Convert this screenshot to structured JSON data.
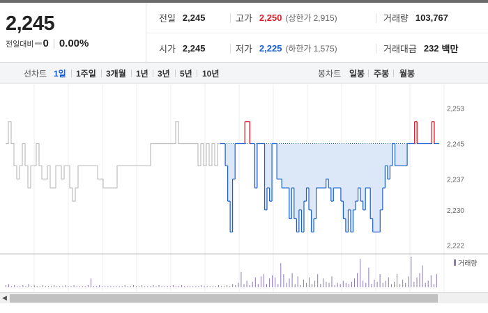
{
  "quote": {
    "price": "2,245",
    "change_label": "전일대비",
    "change": "0",
    "change_rate": "0.00%",
    "prev_close_label": "전일",
    "prev_close": "2,245",
    "open_label": "시가",
    "open": "2,245",
    "high_label": "고가",
    "high": "2,250",
    "upper_limit_label": "(상한가",
    "upper_limit": "2,915)",
    "low_label": "저가",
    "low": "2,225",
    "lower_limit_label": "(하한가",
    "lower_limit": "1,575)",
    "volume_label": "거래량",
    "volume": "103,767",
    "amount_label": "거래대금",
    "amount": "232",
    "amount_unit": "백만"
  },
  "tabs": {
    "line_title": "선차트",
    "line_tabs": [
      "1일",
      "1주일",
      "3개월",
      "1년",
      "3년",
      "5년",
      "10년"
    ],
    "active_line_tab": 0,
    "candle_title": "봉차트",
    "candle_tabs": [
      "일봉",
      "주봉",
      "월봉"
    ]
  },
  "colors": {
    "up": "#e0202e",
    "down": "#1a5fcf",
    "prev_day": "#bdbdbd",
    "fill": "#dce8f7"
  },
  "chart_data": {
    "type": "line",
    "title": "",
    "ylim": [
      2221,
      2255
    ],
    "yticks": [
      "2,253",
      "2,245",
      "2,237",
      "2,230",
      "2,222"
    ],
    "ytick_values": [
      2253,
      2245,
      2237,
      2230,
      2222
    ],
    "base_price": 2245,
    "grid": true,
    "legend": "top-right",
    "volume_legend": "거래량",
    "series": [
      {
        "values_prev_day": [
          2245,
          2250,
          2245,
          2240,
          2237,
          2240,
          2245,
          2240,
          2235,
          2240,
          2240,
          2245,
          2240,
          2237,
          2237,
          2240,
          2235,
          2235,
          2240,
          2240,
          2237,
          2240,
          2240,
          2235,
          2232,
          2235,
          2240,
          2240,
          2240,
          2240,
          2240,
          2240,
          2240,
          2237,
          2237,
          2235,
          2235,
          2235,
          2235,
          2235,
          2240,
          2240,
          2240,
          2240,
          2240,
          2240,
          2240,
          2240,
          2240,
          2240,
          2240,
          2240,
          2245,
          2245,
          2245,
          2245,
          2245,
          2245,
          2245,
          2245,
          2245,
          2250,
          2245,
          2245,
          2245,
          2245,
          2245,
          2245,
          2245,
          2240,
          2245,
          2240,
          2245,
          2240,
          2245,
          2240,
          2245,
          2245
        ]
      },
      {
        "values": [
          2245,
          2245,
          2240,
          2232,
          2225,
          2237,
          2245,
          2245,
          2245,
          2245,
          2250,
          2250,
          2245,
          2245,
          2235,
          2245,
          2245,
          2245,
          2230,
          2235,
          2232,
          2245,
          2245,
          2237,
          2237,
          2235,
          2235,
          2235,
          2228,
          2235,
          2228,
          2225,
          2230,
          2225,
          2232,
          2235,
          2230,
          2225,
          2228,
          2235,
          2235,
          2235,
          2235,
          2237,
          2235,
          2232,
          2235,
          2235,
          2235,
          2232,
          2228,
          2225,
          2230,
          2225,
          2230,
          2232,
          2235,
          2232,
          2230,
          2235,
          2235,
          2228,
          2225,
          2225,
          2225,
          2230,
          2235,
          2240,
          2237,
          2240,
          2245,
          2240,
          2240,
          2240,
          2240,
          2240,
          2245,
          2245,
          2245,
          2250,
          2245,
          2245,
          2245,
          2245,
          2245,
          2245,
          2250,
          2245,
          2245
        ]
      }
    ],
    "volume": [
      2,
      3,
      1,
      2,
      1,
      1,
      2,
      1,
      3,
      1,
      2,
      1,
      1,
      2,
      1,
      1,
      1,
      2,
      1,
      1,
      1,
      2,
      1,
      1,
      2,
      1,
      1,
      1,
      1,
      2,
      8,
      1,
      1,
      2,
      1,
      1,
      1,
      1,
      1,
      1,
      1,
      1,
      2,
      1,
      1,
      2,
      1,
      1,
      2,
      1,
      1,
      1,
      2,
      1,
      2,
      1,
      1,
      1,
      1,
      2,
      1,
      1,
      2,
      1,
      1,
      1,
      1,
      1,
      1,
      2,
      1,
      1,
      1,
      1,
      1,
      2,
      1,
      1,
      2,
      1,
      3,
      2,
      4,
      14,
      3,
      6,
      2,
      5,
      9,
      3,
      10,
      12,
      3,
      8,
      11,
      9,
      3,
      22,
      12,
      4,
      8,
      13,
      3,
      10,
      2,
      7,
      4,
      9,
      3,
      6,
      12,
      3,
      8,
      5,
      4,
      10,
      2,
      4,
      3,
      6,
      4,
      3,
      5,
      8,
      13,
      26,
      6,
      4,
      18,
      3,
      7,
      5,
      12,
      4,
      6,
      9,
      3,
      5,
      12,
      3,
      7,
      4,
      10,
      28,
      5,
      9,
      13,
      20,
      4,
      6,
      11,
      3,
      12
    ]
  }
}
